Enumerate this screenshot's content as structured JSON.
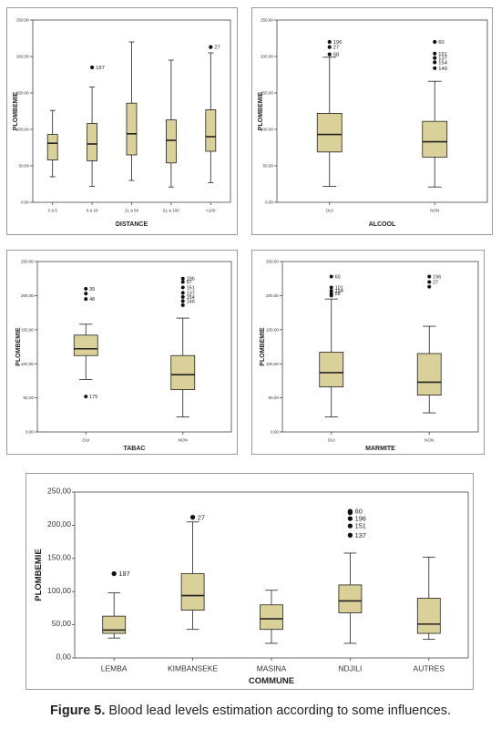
{
  "colors": {
    "box_fill": "#d9d09a",
    "stroke": "#222222",
    "outlier": "#111111",
    "axis": "#444444"
  },
  "caption": {
    "label": "Figure 5.",
    "text": "Blood lead levels estimation according to some influences."
  },
  "chart_data": [
    {
      "id": "distance",
      "type": "boxplot",
      "xlabel": "DISTANCE",
      "ylabel": "PLOMBEMIE",
      "ylim": [
        0,
        250
      ],
      "yticks": [
        "0,00",
        "50,00",
        "100,00",
        "150,00",
        "200,00",
        "250,00"
      ],
      "yticks_values": [
        0,
        50,
        100,
        150,
        200,
        250
      ],
      "categories": [
        "0 à 5",
        "6 à 20",
        "21 à 50",
        "51 à 100",
        ">100"
      ],
      "boxes": [
        {
          "min": 35,
          "q1": 58,
          "median": 81,
          "q3": 93,
          "max": 126
        },
        {
          "min": 22,
          "q1": 57,
          "median": 80,
          "q3": 108,
          "max": 158
        },
        {
          "min": 30,
          "q1": 65,
          "median": 94,
          "q3": 136,
          "max": 220
        },
        {
          "min": 21,
          "q1": 54,
          "median": 85,
          "q3": 113,
          "max": 195
        },
        {
          "min": 27,
          "q1": 70,
          "median": 90,
          "q3": 127,
          "max": 205
        }
      ],
      "outliers": [
        {
          "category": 1,
          "value": 185,
          "label": "187"
        },
        {
          "category": 4,
          "value": 213,
          "label": "27"
        }
      ]
    },
    {
      "id": "alcool",
      "type": "boxplot",
      "xlabel": "ALCOOL",
      "ylabel": "PLOMBEMIE",
      "ylim": [
        0,
        250
      ],
      "yticks": [
        "0,00",
        "50,00",
        "100,00",
        "150,00",
        "200,00",
        "250,00"
      ],
      "yticks_values": [
        0,
        50,
        100,
        150,
        200,
        250
      ],
      "categories": [
        "OUI",
        "NON"
      ],
      "boxes": [
        {
          "min": 22,
          "q1": 69,
          "median": 93,
          "q3": 122,
          "max": 199
        },
        {
          "min": 21,
          "q1": 62,
          "median": 83,
          "q3": 111,
          "max": 166
        }
      ],
      "outliers": [
        {
          "category": 0,
          "value": 220,
          "label": "196"
        },
        {
          "category": 0,
          "value": 213,
          "label": "27"
        },
        {
          "category": 0,
          "value": 203,
          "label": "58"
        },
        {
          "category": 1,
          "value": 220,
          "label": "60"
        },
        {
          "category": 1,
          "value": 204,
          "label": "151"
        },
        {
          "category": 1,
          "value": 198,
          "label": "137"
        },
        {
          "category": 1,
          "value": 192,
          "label": "154"
        },
        {
          "category": 1,
          "value": 184,
          "label": "149"
        }
      ]
    },
    {
      "id": "tabac",
      "type": "boxplot",
      "xlabel": "TABAC",
      "ylabel": "PLOMBEMIE",
      "ylim": [
        0,
        250
      ],
      "yticks": [
        "0,00",
        "50,00",
        "100,00",
        "150,00",
        "200,00",
        "250,00"
      ],
      "yticks_values": [
        0,
        50,
        100,
        150,
        200,
        250
      ],
      "categories": [
        "OUI",
        "NON"
      ],
      "boxes": [
        {
          "min": 77,
          "q1": 112,
          "median": 122,
          "q3": 142,
          "max": 158
        },
        {
          "min": 22,
          "q1": 62,
          "median": 84,
          "q3": 112,
          "max": 167
        }
      ],
      "outliers": [
        {
          "category": 0,
          "value": 210,
          "label": "39"
        },
        {
          "category": 0,
          "value": 203,
          "label": ""
        },
        {
          "category": 0,
          "value": 195,
          "label": "48"
        },
        {
          "category": 0,
          "value": 52,
          "label": "175"
        },
        {
          "category": 1,
          "value": 225,
          "label": "196"
        },
        {
          "category": 1,
          "value": 220,
          "label": "97"
        },
        {
          "category": 1,
          "value": 212,
          "label": "151"
        },
        {
          "category": 1,
          "value": 204,
          "label": "137"
        },
        {
          "category": 1,
          "value": 198,
          "label": "154"
        },
        {
          "category": 1,
          "value": 192,
          "label": "146"
        },
        {
          "category": 1,
          "value": 186,
          "label": ""
        }
      ]
    },
    {
      "id": "marmite",
      "type": "boxplot",
      "xlabel": "MARMITE",
      "ylabel": "PLOMBEMIE",
      "ylim": [
        0,
        250
      ],
      "yticks": [
        "0,00",
        "50,00",
        "100,00",
        "150,00",
        "200,00",
        "250,00"
      ],
      "yticks_values": [
        0,
        50,
        100,
        150,
        200,
        250
      ],
      "categories": [
        "OUI",
        "NON"
      ],
      "boxes": [
        {
          "min": 22,
          "q1": 66,
          "median": 87,
          "q3": 117,
          "max": 195
        },
        {
          "min": 28,
          "q1": 54,
          "median": 73,
          "q3": 115,
          "max": 155
        }
      ],
      "outliers": [
        {
          "category": 0,
          "value": 228,
          "label": "60"
        },
        {
          "category": 0,
          "value": 212,
          "label": "101"
        },
        {
          "category": 0,
          "value": 207,
          "label": "154"
        },
        {
          "category": 0,
          "value": 203,
          "label": "58"
        },
        {
          "category": 0,
          "value": 200,
          "label": ""
        },
        {
          "category": 1,
          "value": 228,
          "label": "196"
        },
        {
          "category": 1,
          "value": 220,
          "label": "27"
        },
        {
          "category": 1,
          "value": 213,
          "label": ""
        }
      ]
    },
    {
      "id": "commune",
      "type": "boxplot",
      "xlabel": "COMMUNE",
      "ylabel": "PLOMBEMIE",
      "ylim": [
        0,
        250
      ],
      "yticks": [
        "0,00",
        "50,00",
        "100,00",
        "150,00",
        "200,00",
        "250,00"
      ],
      "yticks_values": [
        0,
        50,
        100,
        150,
        200,
        250
      ],
      "categories": [
        "LEMBA",
        "KIMBANSEKE",
        "MASINA",
        "NDJILI",
        "AUTRES"
      ],
      "boxes": [
        {
          "min": 30,
          "q1": 37,
          "median": 42,
          "q3": 63,
          "max": 98
        },
        {
          "min": 43,
          "q1": 72,
          "median": 94,
          "q3": 127,
          "max": 205
        },
        {
          "min": 22,
          "q1": 43,
          "median": 59,
          "q3": 80,
          "max": 102
        },
        {
          "min": 22,
          "q1": 68,
          "median": 86,
          "q3": 110,
          "max": 158
        },
        {
          "min": 28,
          "q1": 37,
          "median": 51,
          "q3": 90,
          "max": 152
        }
      ],
      "outliers": [
        {
          "category": 0,
          "value": 127,
          "label": "187"
        },
        {
          "category": 1,
          "value": 212,
          "label": "27"
        },
        {
          "category": 3,
          "value": 221,
          "label": "60"
        },
        {
          "category": 3,
          "value": 219,
          "label": ""
        },
        {
          "category": 3,
          "value": 210,
          "label": "196"
        },
        {
          "category": 3,
          "value": 199,
          "label": "151"
        },
        {
          "category": 3,
          "value": 185,
          "label": "137"
        }
      ]
    }
  ]
}
